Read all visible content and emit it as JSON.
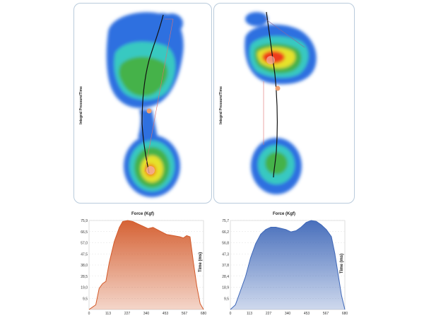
{
  "pressure_maps": {
    "left": {
      "label": "Integral Pressure/Time"
    },
    "right": {
      "label": "Integral Pressure/Time"
    }
  },
  "chart_data": [
    {
      "type": "area",
      "title": "Force (Kgf)",
      "xlabel": "",
      "ylabel": "Time (ms)",
      "color": "#d35a2a",
      "xlim": [
        0,
        680
      ],
      "ylim": [
        0,
        75.9
      ],
      "x_ticks": [
        "0",
        "113",
        "227",
        "340",
        "453",
        "567",
        "680"
      ],
      "y_ticks": [
        "9,5",
        "19,0",
        "28,5",
        "38,0",
        "47,5",
        "57,0",
        "66,5",
        "75,9"
      ],
      "x": [
        0,
        20,
        40,
        60,
        80,
        100,
        120,
        150,
        180,
        200,
        230,
        260,
        290,
        320,
        350,
        380,
        420,
        460,
        500,
        540,
        560,
        580,
        600,
        620,
        640,
        660,
        680
      ],
      "values": [
        0,
        2,
        4,
        18,
        22,
        24,
        40,
        58,
        70,
        75,
        75.9,
        75,
        73,
        71,
        69,
        70,
        67,
        64,
        63,
        62,
        61,
        63,
        62,
        40,
        20,
        5,
        0
      ]
    },
    {
      "type": "area",
      "title": "Force (Kgf)",
      "xlabel": "",
      "ylabel": "Time (ms)",
      "color": "#3e67b8",
      "xlim": [
        0,
        680
      ],
      "ylim": [
        0,
        75.7
      ],
      "x_ticks": [
        "0",
        "113",
        "227",
        "340",
        "453",
        "567",
        "680"
      ],
      "y_ticks": [
        "9,5",
        "18,9",
        "28,4",
        "37,8",
        "47,3",
        "56,8",
        "66,2",
        "75,7"
      ],
      "x": [
        0,
        30,
        60,
        90,
        120,
        150,
        180,
        210,
        240,
        270,
        300,
        330,
        360,
        390,
        420,
        450,
        480,
        510,
        540,
        570,
        600,
        620,
        640,
        660,
        680
      ],
      "values": [
        0,
        4,
        16,
        28,
        44,
        56,
        64,
        68,
        70,
        70,
        69,
        68,
        66,
        67,
        70,
        74,
        75.7,
        75,
        72,
        68,
        62,
        48,
        30,
        12,
        0
      ]
    }
  ]
}
